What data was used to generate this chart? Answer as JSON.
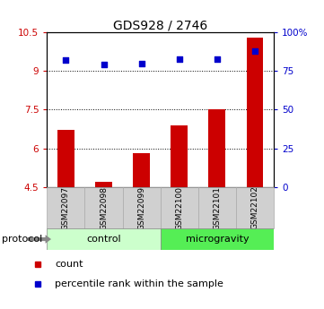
{
  "title": "GDS928 / 2746",
  "categories": [
    "GSM22097",
    "GSM22098",
    "GSM22099",
    "GSM22100",
    "GSM22101",
    "GSM22102"
  ],
  "bar_values": [
    6.7,
    4.7,
    5.8,
    6.9,
    7.5,
    10.3
  ],
  "scatter_values": [
    82,
    79,
    80,
    83,
    83,
    88
  ],
  "ylim_left": [
    4.5,
    10.5
  ],
  "ylim_right": [
    0,
    100
  ],
  "yticks_left": [
    4.5,
    6.0,
    7.5,
    9.0,
    10.5
  ],
  "ytick_labels_left": [
    "4.5",
    "6",
    "7.5",
    "9",
    "10.5"
  ],
  "yticks_right": [
    0,
    25,
    50,
    75,
    100
  ],
  "ytick_labels_right": [
    "0",
    "25",
    "50",
    "75",
    "100%"
  ],
  "hlines": [
    6.0,
    7.5,
    9.0
  ],
  "bar_color": "#cc0000",
  "scatter_color": "#0000cc",
  "bar_bottom": 4.5,
  "groups": [
    {
      "label": "control",
      "indices": [
        0,
        1,
        2
      ],
      "color": "#ccffcc"
    },
    {
      "label": "microgravity",
      "indices": [
        3,
        4,
        5
      ],
      "color": "#55ee55"
    }
  ],
  "protocol_label": "protocol",
  "legend_bar_label": "count",
  "legend_scatter_label": "percentile rank within the sample",
  "title_fontsize": 10,
  "tick_fontsize": 7.5,
  "label_fontsize": 8,
  "bg_color": "#ffffff",
  "left_tick_color": "#cc0000",
  "right_tick_color": "#0000cc",
  "label_box_color": "#d0d0d0",
  "label_box_edge": "#aaaaaa"
}
